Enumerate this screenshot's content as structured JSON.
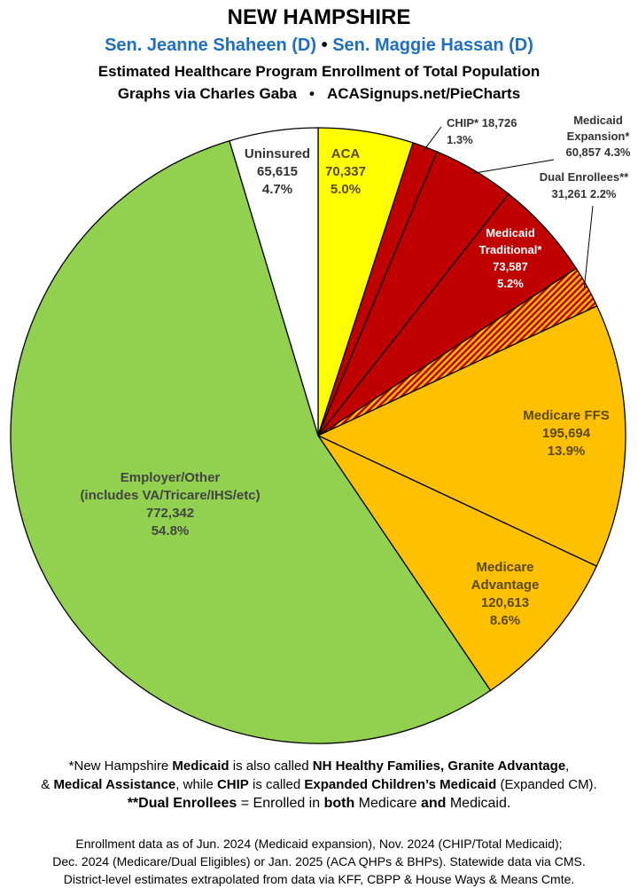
{
  "header": {
    "title": "NEW HAMPSHIRE",
    "senator_1": "Sen. Jeanne Shaheen (D)",
    "bullet": "•",
    "senator_2": "Sen. Maggie Hassan (D)",
    "subtitle": "Estimated Healthcare Program Enrollment of Total Population",
    "credit": "Graphs via Charles Gaba",
    "credit_sep": "•",
    "site": "ACASignups.net/PieCharts"
  },
  "colors": {
    "senators": "#1f6fc0",
    "aca": "#ffff00",
    "medicaid": "#c00000",
    "dual_stripe_a": "#c00000",
    "dual_stripe_b": "#ffc000",
    "medicare": "#ffc000",
    "employer": "#92d050",
    "uninsured": "#ffffff"
  },
  "chart_data": {
    "type": "pie",
    "start": "12 o'clock",
    "direction": "clockwise",
    "slices": [
      {
        "name": "ACA",
        "value": 70337,
        "value_label": "70,337",
        "percent": "5.0%",
        "color": "#ffff00",
        "label_position": "inside"
      },
      {
        "name": "CHIP*",
        "value": 18726,
        "value_label": "18,726",
        "percent": "1.3%",
        "color": "#c00000",
        "label_position": "outside"
      },
      {
        "name": "Medicaid Expansion*",
        "value": 60857,
        "value_label": "60,857",
        "percent": "4.3%",
        "color": "#c00000",
        "label_position": "outside"
      },
      {
        "name": "Medicaid Traditional*",
        "value": 73587,
        "value_label": "73,587",
        "percent": "5.2%",
        "color": "#c00000",
        "label_position": "inside"
      },
      {
        "name": "Dual Enrollees**",
        "value": 31261,
        "value_label": "31,261",
        "percent": "2.2%",
        "color": "striped red/orange",
        "label_position": "outside"
      },
      {
        "name": "Medicare FFS",
        "value": 195694,
        "value_label": "195,694",
        "percent": "13.9%",
        "color": "#ffc000",
        "label_position": "inside"
      },
      {
        "name": "Medicare Advantage",
        "value": 120613,
        "value_label": "120,613",
        "percent": "8.6%",
        "color": "#ffc000",
        "label_position": "inside"
      },
      {
        "name": "Employer/Other (includes VA/Tricare/IHS/etc)",
        "value": 772342,
        "value_label": "772,342",
        "percent": "54.8%",
        "color": "#92d050",
        "label_position": "inside"
      },
      {
        "name": "Uninsured",
        "value": 65615,
        "value_label": "65,615",
        "percent": "4.7%",
        "color": "#ffffff",
        "label_position": "inside"
      }
    ],
    "labels": {
      "aca": [
        "ACA",
        "70,337",
        "5.0%"
      ],
      "chip": [
        "CHIP* 18,726",
        "1.3%"
      ],
      "expansion": [
        "Medicaid",
        "Expansion*",
        "60,857 4.3%"
      ],
      "dual": [
        "Dual Enrollees**",
        "31,261 2.2%"
      ],
      "traditional": [
        "Medicaid",
        "Traditional*",
        "73,587",
        "5.2%"
      ],
      "ffs": [
        "Medicare FFS",
        "195,694",
        "13.9%"
      ],
      "advantage": [
        "Medicare",
        "Advantage",
        "120,613",
        "8.6%"
      ],
      "employer": [
        "Employer/Other",
        "(includes VA/Tricare/IHS/etc)",
        "772,342",
        "54.8%"
      ],
      "uninsured": [
        "Uninsured",
        "65,615",
        "4.7%"
      ]
    }
  },
  "notes": {
    "line1_a": "*New Hampshire ",
    "line1_b": "Medicaid",
    "line1_c": " is also called ",
    "line1_d": "NH Healthy Families, Granite Advantage",
    "line1_e": ",",
    "line2_a": "& ",
    "line2_b": "Medical Assistance",
    "line2_c": ", while ",
    "line2_d": "CHIP",
    "line2_e": " is called ",
    "line2_f": "Expanded Children’s Medicaid",
    "line2_g": " (Expanded CM).",
    "line3_a": "**Dual Enrollees",
    "line3_b": " = Enrolled in ",
    "line3_c": "both",
    "line3_d": " Medicare ",
    "line3_e": "and",
    "line3_f": " Medicaid."
  },
  "sources": {
    "line1": "Enrollment data as of Jun. 2024 (Medicaid expansion), Nov. 2024 (CHIP/Total Medicaid);",
    "line2": "Dec. 2024 (Medicare/Dual Eligibles) or Jan. 2025 (ACA QHPs & BHPs). Statewide data via CMS.",
    "line3": "District-level estimates extrapolated from data via KFF, CBPP & House Ways & Means Cmte."
  }
}
